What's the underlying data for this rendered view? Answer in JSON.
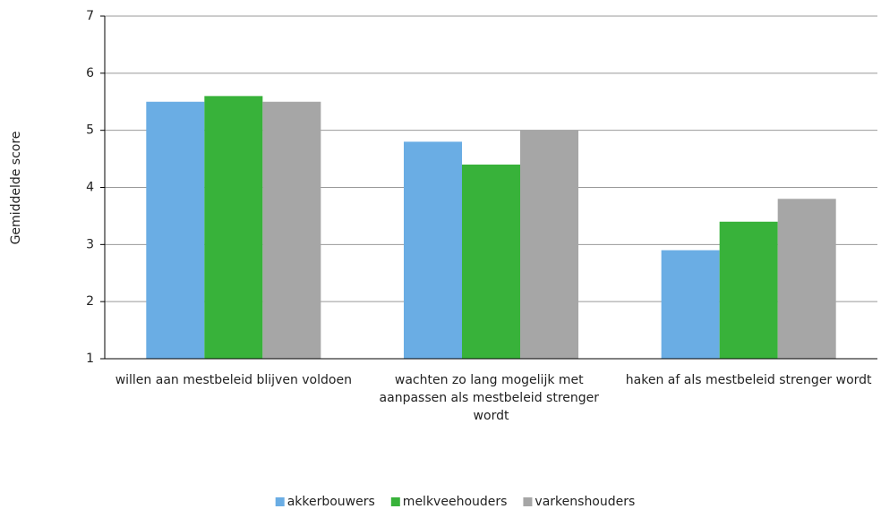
{
  "chart_data": {
    "type": "bar",
    "y_label": "Gemiddelde score",
    "categories": [
      "willen aan mestbeleid blijven voldoen",
      "wachten zo lang mogelijk met aanpassen als mestbeleid strenger wordt",
      "haken af als mestbeleid strenger wordt"
    ],
    "series": [
      {
        "name": "akkerbouwers",
        "color": "#6aade4",
        "values": [
          5.5,
          4.8,
          2.9
        ]
      },
      {
        "name": "melkveehouders",
        "color": "#38b23a",
        "values": [
          5.6,
          4.4,
          3.4
        ]
      },
      {
        "name": "varkenshouders",
        "color": "#a6a6a6",
        "values": [
          5.5,
          5.0,
          3.8
        ]
      }
    ],
    "ylim": [
      1,
      7
    ],
    "yticks": [
      1,
      2,
      3,
      4,
      5,
      6,
      7
    ],
    "grid": true,
    "legend": "bottom"
  }
}
